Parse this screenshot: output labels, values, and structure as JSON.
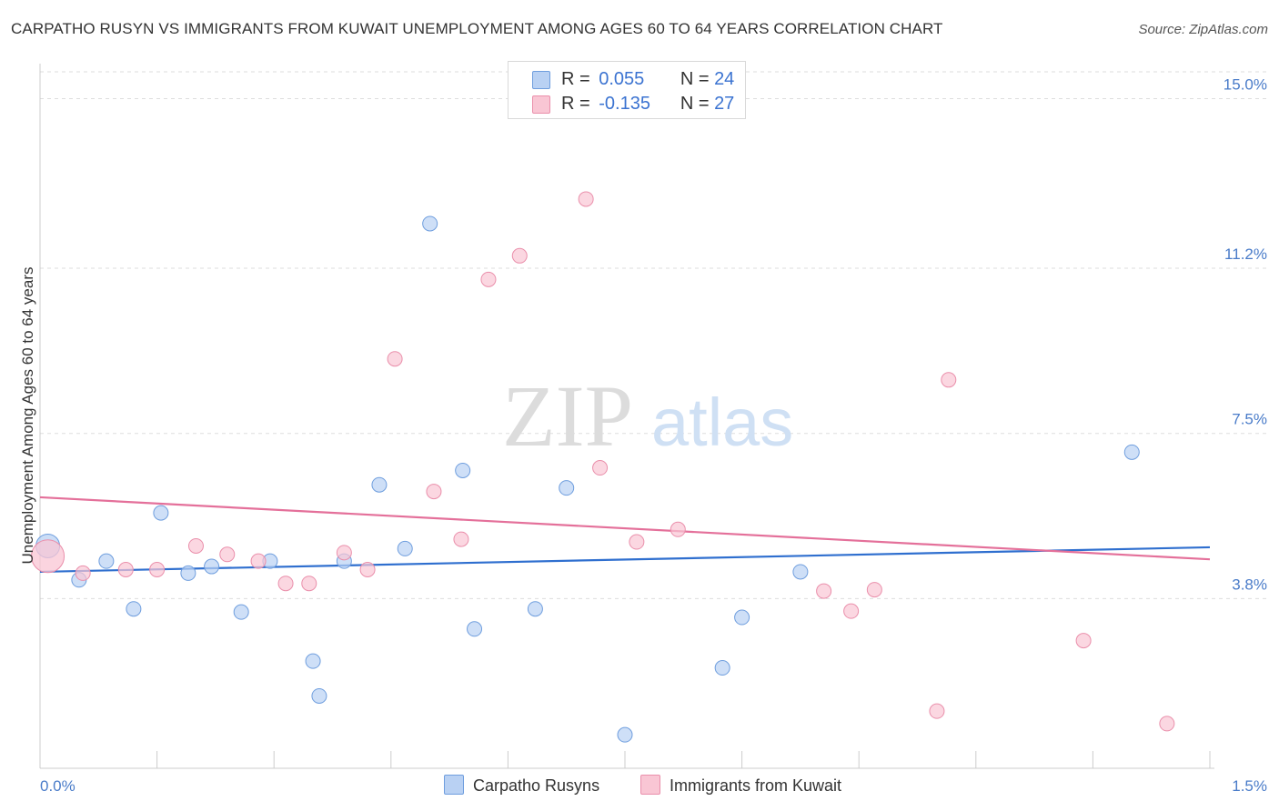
{
  "header": {
    "title": "CARPATHO RUSYN VS IMMIGRANTS FROM KUWAIT UNEMPLOYMENT AMONG AGES 60 TO 64 YEARS CORRELATION CHART",
    "source": "Source: ZipAtlas.com"
  },
  "watermark": {
    "zip": "ZIP",
    "atlas": "atlas"
  },
  "stats_legend": {
    "r_label": "R =",
    "n_label": "N =",
    "rows": [
      {
        "r": "0.055",
        "n": "24"
      },
      {
        "r": "-0.135",
        "n": "27"
      }
    ]
  },
  "colors": {
    "blue_fill": "#b9d1f3",
    "blue_stroke": "#6f9ede",
    "blue_line": "#2f6fcf",
    "pink_fill": "#f9c6d4",
    "pink_stroke": "#ea8fab",
    "pink_line": "#e4709a",
    "tick_text": "#4a7cc9"
  },
  "chart_data": {
    "type": "scatter",
    "title": "CARPATHO RUSYN VS IMMIGRANTS FROM KUWAIT UNEMPLOYMENT AMONG AGES 60 TO 64 YEARS CORRELATION CHART",
    "xlabel": "",
    "ylabel": "Unemployment Among Ages 60 to 64 years",
    "xlim": [
      0,
      1.5
    ],
    "ylim": [
      0,
      15.6
    ],
    "x_tick_labels": [
      "0.0%",
      "1.5%"
    ],
    "y_ticks": [
      3.8,
      7.5,
      11.2,
      15.0
    ],
    "y_tick_labels": [
      "3.8%",
      "7.5%",
      "11.2%",
      "15.0%"
    ],
    "legend_position": "bottom",
    "series": [
      {
        "name": "Carpatho Rusyns",
        "r": 0.055,
        "n": 24,
        "trend": [
          [
            0,
            4.4
          ],
          [
            1.5,
            4.95
          ]
        ],
        "points": [
          [
            0.01,
            4.98
          ],
          [
            0.05,
            4.22
          ],
          [
            0.085,
            4.64
          ],
          [
            0.12,
            3.57
          ],
          [
            0.155,
            5.72
          ],
          [
            0.19,
            4.37
          ],
          [
            0.22,
            4.52
          ],
          [
            0.258,
            3.5
          ],
          [
            0.295,
            4.64
          ],
          [
            0.35,
            2.4
          ],
          [
            0.358,
            1.62
          ],
          [
            0.39,
            4.64
          ],
          [
            0.435,
            6.35
          ],
          [
            0.468,
            4.92
          ],
          [
            0.5,
            12.2
          ],
          [
            0.542,
            6.67
          ],
          [
            0.557,
            3.12
          ],
          [
            0.635,
            3.57
          ],
          [
            0.675,
            6.28
          ],
          [
            0.75,
            0.75
          ],
          [
            0.875,
            2.25
          ],
          [
            0.9,
            3.38
          ],
          [
            0.975,
            4.4
          ],
          [
            1.4,
            7.08
          ]
        ]
      },
      {
        "name": "Immigrants from Kuwait",
        "r": -0.135,
        "n": 27,
        "trend": [
          [
            0,
            6.07
          ],
          [
            1.5,
            4.68
          ]
        ],
        "points": [
          [
            0.01,
            4.75
          ],
          [
            0.055,
            4.37
          ],
          [
            0.11,
            4.45
          ],
          [
            0.15,
            4.45
          ],
          [
            0.2,
            4.98
          ],
          [
            0.24,
            4.79
          ],
          [
            0.28,
            4.64
          ],
          [
            0.315,
            4.14
          ],
          [
            0.345,
            4.14
          ],
          [
            0.39,
            4.83
          ],
          [
            0.42,
            4.45
          ],
          [
            0.455,
            9.17
          ],
          [
            0.505,
            6.2
          ],
          [
            0.54,
            5.13
          ],
          [
            0.575,
            10.95
          ],
          [
            0.615,
            11.48
          ],
          [
            0.7,
            12.75
          ],
          [
            0.718,
            6.73
          ],
          [
            0.765,
            5.07
          ],
          [
            0.818,
            5.35
          ],
          [
            1.005,
            3.97
          ],
          [
            1.04,
            3.52
          ],
          [
            1.07,
            4.0
          ],
          [
            1.15,
            1.28
          ],
          [
            1.165,
            8.7
          ],
          [
            1.338,
            2.86
          ],
          [
            1.445,
            1.0
          ]
        ]
      }
    ]
  }
}
